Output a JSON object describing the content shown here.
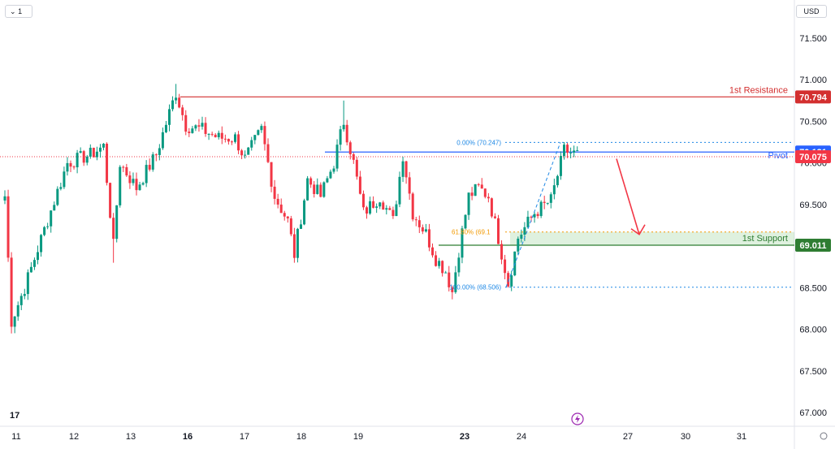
{
  "toolbar": {
    "interval_label": "1",
    "currency_label": "USD"
  },
  "colors": {
    "up": "#089981",
    "down": "#f23645",
    "resistance": "#d32f2f",
    "pivot": "#2962ff",
    "support": "#2e7d32",
    "price": "#f23645",
    "fib": "#1e88e5",
    "fib_618": "#f29900",
    "arrow": "#f23645"
  },
  "chart_data": {
    "type": "candlestick",
    "y_axis": {
      "ticks": [
        "71.500",
        "71.000",
        "70.500",
        "70.000",
        "69.500",
        "69.000",
        "68.500",
        "68.000",
        "67.500",
        "67.000"
      ],
      "tick_values": [
        71.5,
        71.0,
        70.5,
        70.0,
        69.5,
        69.0,
        68.5,
        68.0,
        67.5,
        67.0
      ],
      "ylim": [
        66.94,
        71.62
      ]
    },
    "x_axis": {
      "ticks": [
        {
          "label": "11",
          "bold": false
        },
        {
          "label": "12",
          "bold": false
        },
        {
          "label": "13",
          "bold": false
        },
        {
          "label": "16",
          "bold": true
        },
        {
          "label": "17",
          "bold": false
        },
        {
          "label": "18",
          "bold": false
        },
        {
          "label": "19",
          "bold": false
        },
        {
          "label": "23",
          "bold": true
        },
        {
          "label": "24",
          "bold": false
        },
        {
          "label": "27",
          "bold": false
        },
        {
          "label": "30",
          "bold": false
        },
        {
          "label": "31",
          "bold": false
        }
      ]
    },
    "key_points": [
      {
        "bar": 0,
        "price": 69.6
      },
      {
        "bar": 2,
        "price": 68.1
      },
      {
        "bar": 6,
        "price": 68.5
      },
      {
        "bar": 12,
        "price": 69.2
      },
      {
        "bar": 19,
        "price": 70.0
      },
      {
        "bar": 26,
        "price": 70.1
      },
      {
        "bar": 30,
        "price": 70.2
      },
      {
        "bar": 33,
        "price": 69.0
      },
      {
        "bar": 35,
        "price": 70.0
      },
      {
        "bar": 40,
        "price": 69.7
      },
      {
        "bar": 46,
        "price": 70.1
      },
      {
        "bar": 52,
        "price": 70.85
      },
      {
        "bar": 55,
        "price": 70.45
      },
      {
        "bar": 60,
        "price": 70.4
      },
      {
        "bar": 65,
        "price": 70.3
      },
      {
        "bar": 70,
        "price": 70.3
      },
      {
        "bar": 73,
        "price": 70.05
      },
      {
        "bar": 78,
        "price": 70.4
      },
      {
        "bar": 82,
        "price": 69.6
      },
      {
        "bar": 86,
        "price": 69.3
      },
      {
        "bar": 88,
        "price": 68.9
      },
      {
        "bar": 92,
        "price": 69.8
      },
      {
        "bar": 96,
        "price": 69.6
      },
      {
        "bar": 100,
        "price": 70.0
      },
      {
        "bar": 103,
        "price": 70.5
      },
      {
        "bar": 106,
        "price": 70.0
      },
      {
        "bar": 109,
        "price": 69.4
      },
      {
        "bar": 114,
        "price": 69.6
      },
      {
        "bar": 118,
        "price": 69.3
      },
      {
        "bar": 121,
        "price": 70.1
      },
      {
        "bar": 124,
        "price": 69.4
      },
      {
        "bar": 128,
        "price": 69.15
      },
      {
        "bar": 131,
        "price": 68.85
      },
      {
        "bar": 134,
        "price": 68.7
      },
      {
        "bar": 136,
        "price": 68.45
      },
      {
        "bar": 138,
        "price": 68.95
      },
      {
        "bar": 141,
        "price": 69.6
      },
      {
        "bar": 144,
        "price": 69.7
      },
      {
        "bar": 147,
        "price": 69.6
      },
      {
        "bar": 150,
        "price": 69.1
      },
      {
        "bar": 153,
        "price": 68.55
      },
      {
        "bar": 156,
        "price": 69.1
      },
      {
        "bar": 161,
        "price": 69.4
      },
      {
        "bar": 166,
        "price": 69.55
      },
      {
        "bar": 170,
        "price": 70.15
      },
      {
        "bar": 174,
        "price": 70.1
      }
    ],
    "total_bars": 175,
    "levels": [
      {
        "name": "1st Resistance",
        "value": 70.794,
        "label": "70.794",
        "color": "#d32f2f"
      },
      {
        "name": "Pivot",
        "value": 70.131,
        "label": "70.131",
        "color": "#2962ff"
      },
      {
        "name": "1st Support",
        "value": 69.011,
        "label": "69.011",
        "color": "#2e7d32"
      }
    ],
    "current_price": {
      "value": 70.075,
      "label": "70.075"
    },
    "fibonacci": [
      {
        "text": "0.00% (70.247)",
        "value": 70.247
      },
      {
        "text": "61.80% (69.1",
        "value": 69.17
      },
      {
        "text": "100.00% (68.506)",
        "value": 68.506
      }
    ],
    "forecast_arrow": {
      "from": 70.07,
      "to": 69.14
    }
  }
}
